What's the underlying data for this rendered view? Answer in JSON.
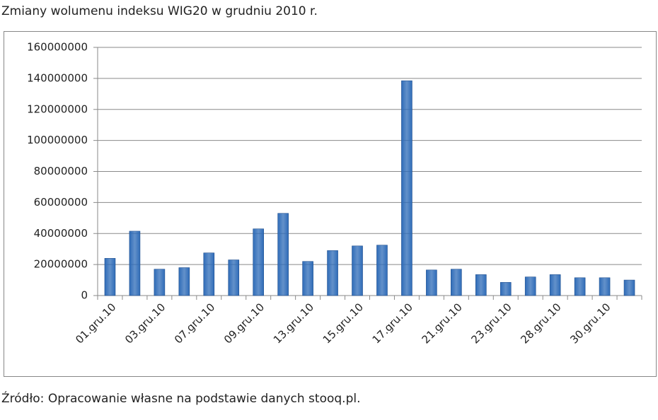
{
  "chart_data": {
    "type": "bar",
    "title": "Zmiany wolumenu indeksu WIG20 w grudniu 2010 r.",
    "source": "Źródło: Opracowanie własne na podstawie danych stooq.pl.",
    "categories": [
      "01.gru.10",
      null,
      "03.gru.10",
      null,
      "07.gru.10",
      null,
      "09.gru.10",
      null,
      "13.gru.10",
      null,
      "15.gru.10",
      null,
      "17.gru.10",
      null,
      "21.gru.10",
      null,
      "23.gru.10",
      null,
      "28.gru.10",
      null,
      "30.gru.10",
      null
    ],
    "values": [
      24000000,
      41500000,
      17000000,
      18000000,
      27500000,
      23000000,
      43000000,
      53000000,
      22000000,
      29000000,
      32000000,
      32500000,
      138500000,
      16500000,
      17000000,
      13500000,
      8500000,
      12000000,
      13500000,
      11500000,
      11500000,
      10000000
    ],
    "color": "#2f6cb8",
    "ylim": [
      0,
      160000000
    ],
    "yticks": [
      0,
      20000000,
      40000000,
      60000000,
      80000000,
      100000000,
      120000000,
      140000000,
      160000000
    ],
    "grid": true
  }
}
